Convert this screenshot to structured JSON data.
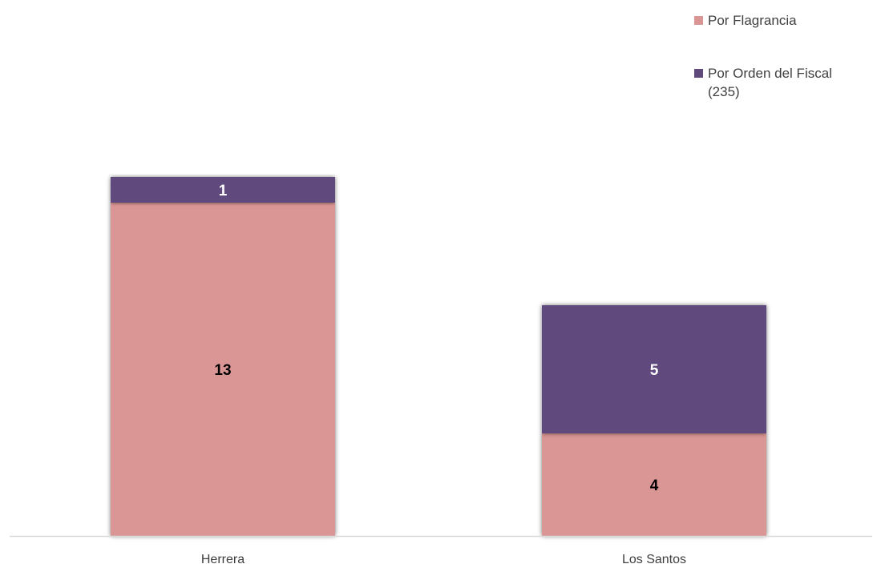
{
  "chart_data": {
    "type": "bar",
    "stacked": true,
    "categories": [
      "Herrera",
      "Los Santos"
    ],
    "series": [
      {
        "name": "Por Flagrancia",
        "values": [
          13,
          4
        ],
        "color": "#d99694"
      },
      {
        "name": "Por Orden del Fiscal (235)",
        "values": [
          1,
          5
        ],
        "color": "#604a7b"
      }
    ],
    "ylim": [
      0,
      14
    ],
    "grid": false,
    "legend_position": "top-right",
    "data_label_colors": [
      "#000000",
      "#ffffff"
    ]
  },
  "legend": {
    "items": [
      {
        "label": "Por Flagrancia",
        "color": "#d99694"
      },
      {
        "label": "Por Orden del Fiscal",
        "label_cont": "(235)",
        "color": "#604a7b"
      }
    ]
  }
}
